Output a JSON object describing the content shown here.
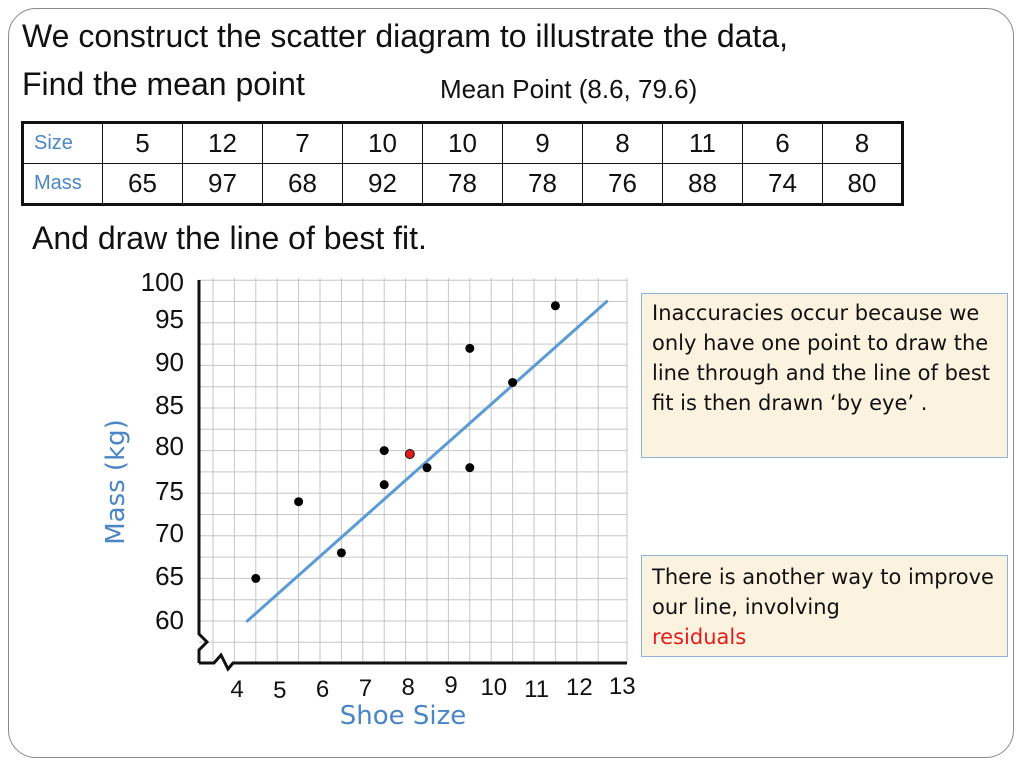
{
  "heading": {
    "line1": "We construct the scatter diagram to illustrate the data,",
    "line2": "Find the mean point",
    "mean_point": "Mean Point (8.6, 79.6)",
    "line3": "And draw the line of best fit."
  },
  "table": {
    "row1_label": "Size",
    "row2_label": "Mass",
    "sizes": [
      "5",
      "12",
      "7",
      "10",
      "10",
      "9",
      "8",
      "11",
      "6",
      "8"
    ],
    "masses": [
      "65",
      "97",
      "68",
      "92",
      "78",
      "78",
      "76",
      "88",
      "74",
      "80"
    ]
  },
  "notes": {
    "note1": "Inaccuracies  occur because we only have one point to draw the line through and the line of best fit is then drawn ‘by eye’ .",
    "note2_text": "There is another way to improve our line, involving",
    "note2_accent": "residuals"
  },
  "colors": {
    "axis_label": "#4a86c5",
    "best_fit_line": "#5b9bd5",
    "mean_point": "#e11d1d",
    "data_point": "#000000",
    "accent_text": "#e11d1d",
    "note_background": "#fbf3df"
  },
  "chart_data": {
    "type": "scatter",
    "xlabel": "Shoe Size",
    "ylabel": "Mass (kg)",
    "xlim": [
      4,
      13
    ],
    "ylim": [
      60,
      100
    ],
    "x_ticks": [
      "4",
      "5",
      "6",
      "7",
      "8",
      "9",
      "10",
      "11",
      "12",
      "13"
    ],
    "y_ticks": [
      "60",
      "65",
      "70",
      "75",
      "80",
      "85",
      "90",
      "95",
      "100"
    ],
    "axis_breaks": true,
    "grid": true,
    "points": [
      {
        "x": 5,
        "y": 65
      },
      {
        "x": 12,
        "y": 97
      },
      {
        "x": 7,
        "y": 68
      },
      {
        "x": 10,
        "y": 92
      },
      {
        "x": 10,
        "y": 78
      },
      {
        "x": 9,
        "y": 78
      },
      {
        "x": 8,
        "y": 76
      },
      {
        "x": 11,
        "y": 88
      },
      {
        "x": 6,
        "y": 74
      },
      {
        "x": 8,
        "y": 80
      }
    ],
    "mean_point": {
      "x": 8.6,
      "y": 79.6
    },
    "best_fit_line": {
      "x1": 4.8,
      "y1": 60,
      "x2": 13.2,
      "y2": 97.5
    }
  }
}
